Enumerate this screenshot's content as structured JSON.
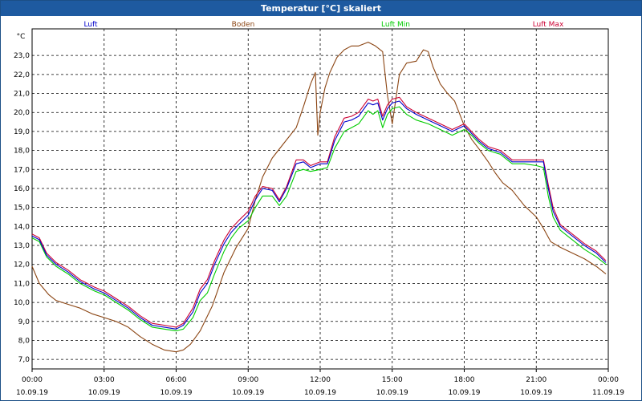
{
  "window": {
    "title": "Temperatur [°C] skaliert"
  },
  "chart_data": {
    "type": "line",
    "title": "Temperatur [°C] skaliert",
    "ylabel": "°C",
    "xlabel": "",
    "xlim": [
      0,
      24
    ],
    "ylim": [
      6.5,
      24.4
    ],
    "grid": true,
    "legend_position": "top",
    "y_ticks": [
      "7,0",
      "8,0",
      "9,0",
      "10,0",
      "11,0",
      "12,0",
      "13,0",
      "14,0",
      "15,0",
      "16,0",
      "17,0",
      "18,0",
      "19,0",
      "20,0",
      "21,0",
      "22,0",
      "23,0"
    ],
    "x_ticks": [
      {
        "time": "00:00",
        "date": "10.09.19"
      },
      {
        "time": "03:00",
        "date": "10.09.19"
      },
      {
        "time": "06:00",
        "date": "10.09.19"
      },
      {
        "time": "09:00",
        "date": "10.09.19"
      },
      {
        "time": "12:00",
        "date": "10.09.19"
      },
      {
        "time": "15:00",
        "date": "10.09.19"
      },
      {
        "time": "18:00",
        "date": "10.09.19"
      },
      {
        "time": "21:00",
        "date": "10.09.19"
      },
      {
        "time": "00:00",
        "date": "11.09.19"
      }
    ],
    "series": [
      {
        "name": "Luft",
        "color": "#0000cc",
        "x": [
          0,
          0.3,
          0.6,
          1,
          1.5,
          2,
          2.3,
          2.6,
          3,
          3.5,
          4,
          4.5,
          5,
          5.5,
          6,
          6.3,
          6.7,
          7,
          7.3,
          7.6,
          8,
          8.3,
          8.6,
          9,
          9.3,
          9.6,
          10,
          10.3,
          10.6,
          11,
          11.3,
          11.6,
          12,
          12.3,
          12.6,
          13,
          13.3,
          13.6,
          14,
          14.2,
          14.4,
          14.6,
          14.8,
          15,
          15.3,
          15.6,
          16,
          16.5,
          17,
          17.5,
          18,
          18.3,
          18.6,
          19,
          19.5,
          20,
          20.5,
          21,
          21.3,
          21.5,
          21.7,
          22,
          22.3,
          22.6,
          23,
          23.5,
          23.9
        ],
        "y": [
          13.5,
          13.3,
          12.5,
          12,
          11.6,
          11.1,
          10.9,
          10.7,
          10.5,
          10.1,
          9.7,
          9.2,
          8.8,
          8.7,
          8.6,
          8.8,
          9.5,
          10.5,
          11,
          12,
          13.1,
          13.7,
          14.1,
          14.6,
          15.4,
          16,
          15.9,
          15.3,
          16,
          17.3,
          17.4,
          17.1,
          17.3,
          17.3,
          18.5,
          19.5,
          19.6,
          19.8,
          20.5,
          20.4,
          20.5,
          19.6,
          20.2,
          20.5,
          20.6,
          20.2,
          19.9,
          19.6,
          19.3,
          19,
          19.3,
          18.9,
          18.5,
          18.1,
          17.9,
          17.4,
          17.4,
          17.4,
          17.4,
          16,
          14.8,
          14,
          13.7,
          13.4,
          13,
          12.6,
          12.1
        ]
      },
      {
        "name": "Boden",
        "color": "#8b4513",
        "x": [
          0,
          0.3,
          0.7,
          1,
          1.5,
          2,
          2.5,
          3,
          3.5,
          4,
          4.5,
          5,
          5.5,
          6,
          6.3,
          6.6,
          7,
          7.5,
          8,
          8.5,
          9,
          9.3,
          9.6,
          10,
          10.5,
          11,
          11.3,
          11.6,
          11.8,
          11.9,
          12,
          12.2,
          12.4,
          12.7,
          13,
          13.3,
          13.6,
          14,
          14.3,
          14.6,
          14.8,
          15,
          15.3,
          15.6,
          16,
          16.3,
          16.5,
          16.7,
          17,
          17.3,
          17.6,
          18,
          18.3,
          18.6,
          19,
          19.3,
          19.6,
          20,
          20.5,
          21,
          21.3,
          21.6,
          22,
          22.5,
          23,
          23.5,
          23.9
        ],
        "y": [
          11.9,
          11,
          10.4,
          10.1,
          9.9,
          9.7,
          9.4,
          9.2,
          9,
          8.7,
          8.2,
          7.8,
          7.5,
          7.4,
          7.5,
          7.8,
          8.5,
          9.8,
          11.6,
          12.9,
          13.9,
          15.4,
          16.6,
          17.6,
          18.4,
          19.2,
          20.3,
          21.5,
          22.1,
          18.8,
          20,
          21.3,
          22.1,
          22.9,
          23.3,
          23.5,
          23.5,
          23.7,
          23.5,
          23.2,
          20.9,
          19.4,
          22,
          22.6,
          22.7,
          23.3,
          23.2,
          22.4,
          21.5,
          21,
          20.6,
          19.3,
          18.6,
          18.1,
          17.4,
          16.8,
          16.3,
          15.9,
          15.1,
          14.5,
          13.9,
          13.2,
          12.9,
          12.6,
          12.3,
          11.9,
          11.5
        ]
      },
      {
        "name": "Luft Min",
        "color": "#00cc00",
        "x": [
          0,
          0.3,
          0.6,
          1,
          1.5,
          2,
          2.3,
          2.6,
          3,
          3.5,
          4,
          4.5,
          5,
          5.5,
          6,
          6.3,
          6.7,
          7,
          7.3,
          7.6,
          8,
          8.3,
          8.6,
          9,
          9.3,
          9.6,
          10,
          10.3,
          10.6,
          11,
          11.3,
          11.6,
          12,
          12.3,
          12.6,
          13,
          13.3,
          13.6,
          14,
          14.2,
          14.4,
          14.6,
          14.8,
          15,
          15.3,
          15.6,
          16,
          16.5,
          17,
          17.5,
          18,
          18.3,
          18.6,
          19,
          19.5,
          20,
          20.5,
          21,
          21.3,
          21.5,
          21.7,
          22,
          22.3,
          22.6,
          23,
          23.5,
          23.9
        ],
        "y": [
          13.4,
          13.2,
          12.4,
          11.9,
          11.5,
          11,
          10.8,
          10.6,
          10.4,
          10,
          9.6,
          9.1,
          8.7,
          8.6,
          8.5,
          8.6,
          9.2,
          10.1,
          10.5,
          11.5,
          12.7,
          13.4,
          13.9,
          14.3,
          15,
          15.6,
          15.6,
          15.1,
          15.6,
          16.9,
          17,
          16.9,
          17,
          17.1,
          18.1,
          19,
          19.2,
          19.4,
          20.1,
          19.9,
          20.1,
          19.2,
          19.9,
          20.2,
          20.3,
          19.9,
          19.6,
          19.4,
          19.1,
          18.8,
          19.1,
          18.8,
          18.4,
          18,
          17.8,
          17.3,
          17.3,
          17.2,
          17.1,
          15.6,
          14.5,
          13.8,
          13.5,
          13.2,
          12.8,
          12.4,
          12
        ]
      },
      {
        "name": "Luft Max",
        "color": "#cc0033",
        "x": [
          0,
          0.3,
          0.6,
          1,
          1.5,
          2,
          2.3,
          2.6,
          3,
          3.5,
          4,
          4.5,
          5,
          5.5,
          6,
          6.3,
          6.7,
          7,
          7.3,
          7.6,
          8,
          8.3,
          8.6,
          9,
          9.3,
          9.6,
          10,
          10.3,
          10.6,
          11,
          11.3,
          11.6,
          12,
          12.3,
          12.6,
          13,
          13.3,
          13.6,
          14,
          14.2,
          14.4,
          14.6,
          14.8,
          15,
          15.3,
          15.6,
          16,
          16.5,
          17,
          17.5,
          18,
          18.3,
          18.6,
          19,
          19.5,
          20,
          20.5,
          21,
          21.3,
          21.5,
          21.7,
          22,
          22.3,
          22.6,
          23,
          23.5,
          23.9
        ],
        "y": [
          13.6,
          13.4,
          12.6,
          12.1,
          11.7,
          11.2,
          11,
          10.8,
          10.6,
          10.2,
          9.8,
          9.3,
          8.9,
          8.8,
          8.7,
          8.9,
          9.7,
          10.7,
          11.2,
          12.2,
          13.3,
          13.9,
          14.3,
          14.8,
          15.6,
          16.1,
          16,
          15.4,
          16.1,
          17.5,
          17.5,
          17.2,
          17.4,
          17.4,
          18.7,
          19.7,
          19.8,
          20,
          20.7,
          20.6,
          20.7,
          19.8,
          20.4,
          20.7,
          20.8,
          20.3,
          20,
          19.7,
          19.4,
          19.1,
          19.4,
          19,
          18.6,
          18.2,
          18,
          17.5,
          17.5,
          17.5,
          17.5,
          16.2,
          15,
          14.1,
          13.8,
          13.5,
          13.1,
          12.7,
          12.2
        ]
      }
    ]
  }
}
